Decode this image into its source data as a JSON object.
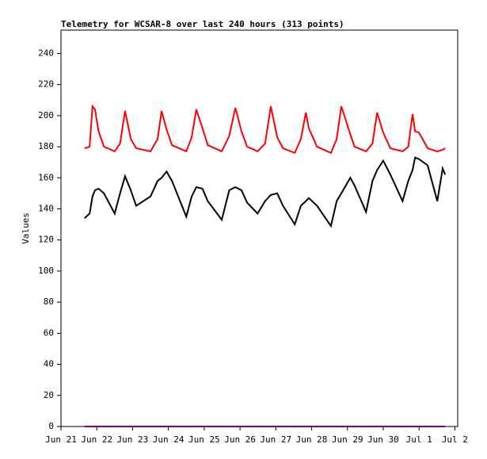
{
  "chart_data": {
    "type": "line",
    "title": "Telemetry for WCSAR-8 over last 240 hours (313 points)",
    "y_label": "Values",
    "x": [
      0.66,
      0.8,
      0.88,
      0.95,
      1.05,
      1.2,
      1.5,
      1.65,
      1.79,
      1.95,
      2.1,
      2.5,
      2.7,
      2.81,
      2.95,
      3.1,
      3.5,
      3.65,
      3.78,
      3.95,
      4.1,
      4.49,
      4.7,
      4.87,
      5.04,
      5.2,
      5.49,
      5.7,
      5.86,
      6.04,
      6.2,
      6.53,
      6.7,
      6.84,
      6.92,
      7.15,
      7.54,
      7.7,
      7.83,
      8.08,
      8.2,
      8.52,
      8.7,
      8.83,
      9.0,
      9.2,
      9.54,
      9.7,
      9.82,
      9.89,
      10.0,
      10.24,
      10.51,
      10.66,
      10.73
    ],
    "series": [
      {
        "color": "#ff0000",
        "values": [
          179,
          180,
          206,
          204,
          190,
          180,
          177,
          182,
          203,
          185,
          179,
          177,
          185,
          203,
          191,
          181,
          177,
          186,
          204,
          192,
          181,
          177,
          187,
          205,
          190,
          180,
          177,
          182,
          206,
          186,
          179,
          176,
          185,
          202,
          192,
          180,
          176,
          185,
          206,
          188,
          180,
          177,
          182,
          202,
          189,
          179,
          177,
          180,
          201,
          190,
          189,
          179,
          177,
          178,
          179
        ]
      },
      {
        "color": "#000000",
        "values": [
          134,
          137,
          148,
          152,
          153,
          150,
          137,
          150,
          161,
          152,
          142,
          148,
          158,
          160,
          164,
          158,
          135,
          148,
          154,
          153,
          145,
          133,
          152,
          154,
          152,
          144,
          137,
          145,
          149,
          150,
          142,
          130,
          142,
          145,
          147,
          142,
          129,
          145,
          150,
          160,
          155,
          138,
          158,
          165,
          171,
          162,
          145,
          158,
          165,
          173,
          172,
          168,
          145,
          166,
          162
        ]
      },
      {
        "color": "#800080",
        "values": [
          0,
          0,
          0,
          0,
          0,
          0,
          0,
          0,
          0,
          0,
          0,
          0,
          0,
          0,
          0,
          0,
          0,
          0,
          0,
          0,
          0,
          0,
          0,
          0,
          0,
          0,
          0,
          0,
          0,
          0,
          0,
          0,
          0,
          0,
          0,
          0,
          0,
          0,
          0,
          0,
          0,
          0,
          0,
          0,
          0,
          0,
          0,
          0,
          0,
          0,
          0,
          0,
          0,
          0,
          0
        ]
      }
    ],
    "xlim": [
      0,
      11.08
    ],
    "xticks": [
      {
        "value": 0,
        "label": "Jun 21"
      },
      {
        "value": 1,
        "label": "Jun 22"
      },
      {
        "value": 2,
        "label": "Jun 23"
      },
      {
        "value": 3,
        "label": "Jun 24"
      },
      {
        "value": 4,
        "label": "Jun 25"
      },
      {
        "value": 5,
        "label": "Jun 26"
      },
      {
        "value": 6,
        "label": "Jun 27"
      },
      {
        "value": 7,
        "label": "Jun 28"
      },
      {
        "value": 8,
        "label": "Jun 29"
      },
      {
        "value": 9,
        "label": "Jun 30"
      },
      {
        "value": 10,
        "label": "Jul 1"
      },
      {
        "value": 11,
        "label": "Jul 2"
      }
    ],
    "ylim": [
      0,
      255
    ],
    "yticks": [
      0,
      20,
      40,
      60,
      80,
      100,
      120,
      140,
      160,
      180,
      200,
      220,
      240
    ]
  }
}
